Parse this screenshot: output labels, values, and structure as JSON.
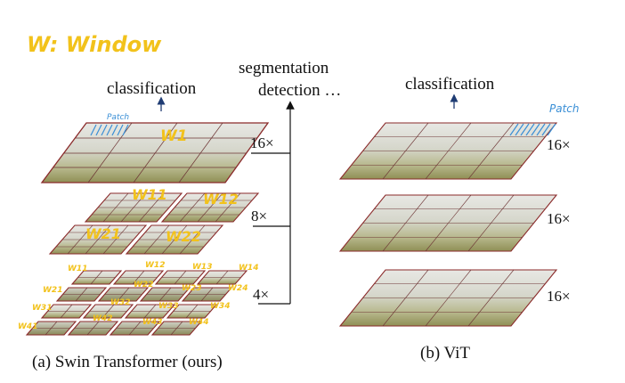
{
  "window_note": "W: Window",
  "swin": {
    "classification": "classification",
    "segmentation": "segmentation",
    "detection": "detection …",
    "patch": "Patch",
    "levels": [
      {
        "scale": "16×",
        "windows": [
          "W1"
        ]
      },
      {
        "scale": "8×",
        "windows": [
          "W11",
          "W12",
          "W21",
          "W22"
        ]
      },
      {
        "scale": "4×",
        "windows": [
          "W11",
          "W12",
          "W13",
          "W14",
          "W21",
          "W22",
          "W23",
          "W24",
          "W31",
          "W32",
          "W33",
          "W34",
          "W41",
          "W42",
          "W43",
          "W44"
        ]
      }
    ],
    "caption": "(a) Swin Transformer (ours)"
  },
  "vit": {
    "classification": "classification",
    "patch": "Patch",
    "levels": [
      {
        "scale": "16×"
      },
      {
        "scale": "16×"
      },
      {
        "scale": "16×"
      }
    ],
    "caption": "(b) ViT"
  },
  "colors": {
    "frame": "#8a2a2a",
    "hand_yellow": "#f2c21b",
    "hand_blue": "#3a8fd6",
    "arrow": "#1f3c73"
  }
}
